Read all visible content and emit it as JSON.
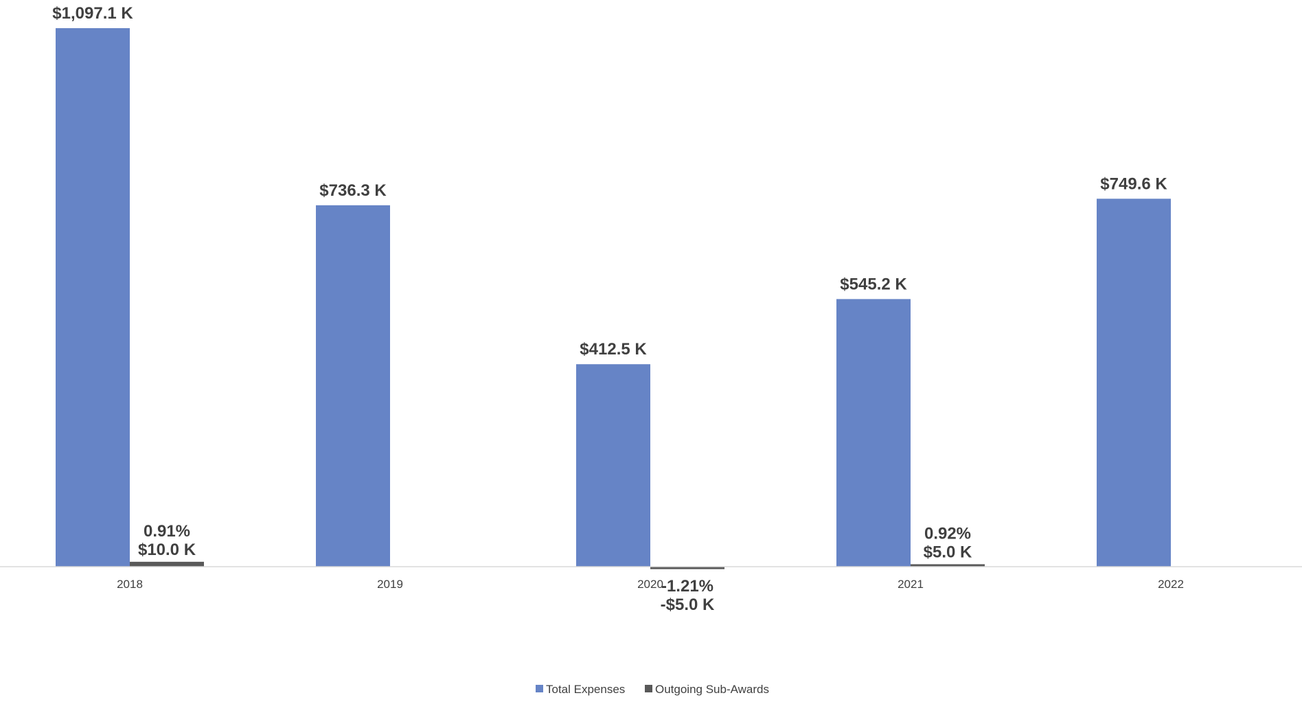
{
  "chart_data": {
    "type": "bar",
    "title": "",
    "xlabel": "",
    "ylabel": "",
    "categories": [
      "2018",
      "2019",
      "2020",
      "2021",
      "2022"
    ],
    "ylim": [
      -5,
      1097.1
    ],
    "grid": false,
    "legend_position": "bottom",
    "series": [
      {
        "name": "Total Expenses",
        "color": "#6684C6",
        "values": [
          1097.1,
          736.3,
          412.5,
          545.2,
          749.6
        ],
        "labels": [
          "$1,097.1 K",
          "$736.3 K",
          "$412.5 K",
          "$545.2 K",
          "$749.6 K"
        ],
        "pct_labels": [
          "",
          "",
          "",
          "",
          ""
        ]
      },
      {
        "name": "Outgoing Sub-Awards",
        "color": "#595959",
        "values": [
          10.0,
          0,
          -5.0,
          5.0,
          0
        ],
        "labels": [
          "$10.0 K",
          "",
          "-$5.0 K",
          "$5.0 K",
          ""
        ],
        "pct_labels": [
          "0.91%",
          "",
          "-1.21%",
          "0.92%",
          ""
        ]
      }
    ]
  }
}
